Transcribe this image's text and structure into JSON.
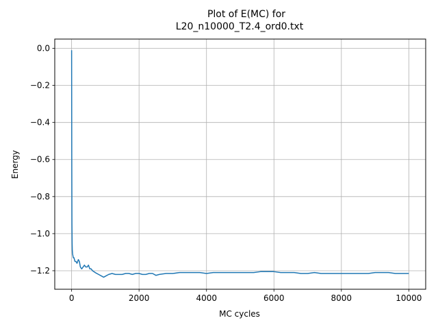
{
  "chart_data": {
    "type": "line",
    "title_line1": "Plot of E(MC) for",
    "title_line2": "L20_n10000_T2.4_ord0.txt",
    "xlabel": "MC cycles",
    "ylabel": "Energy",
    "xlim": [
      -500,
      10500
    ],
    "ylim": [
      -1.3,
      0.05
    ],
    "xticks": [
      0,
      2000,
      4000,
      6000,
      8000,
      10000
    ],
    "xtick_labels": [
      "0",
      "2000",
      "4000",
      "6000",
      "8000",
      "10000"
    ],
    "yticks": [
      0.0,
      -0.2,
      -0.4,
      -0.6,
      -0.8,
      -1.0,
      -1.2
    ],
    "ytick_labels": [
      "0.0",
      "−0.2",
      "−0.4",
      "−0.6",
      "−0.8",
      "−1.0",
      "−1.2"
    ],
    "grid": true,
    "line_color": "#1f77b4",
    "series": [
      {
        "x": [
          0,
          5,
          10,
          15,
          20,
          30,
          40,
          50,
          70,
          100,
          130,
          160,
          200,
          230,
          260,
          300,
          340,
          380,
          420,
          460,
          500,
          540,
          580,
          620,
          700,
          800,
          900,
          950,
          1000,
          1100,
          1200,
          1300,
          1400,
          1500,
          1600,
          1700,
          1800,
          1900,
          2000,
          2100,
          2200,
          2300,
          2400,
          2500,
          2600,
          2800,
          3000,
          3200,
          3400,
          3600,
          3800,
          4000,
          4200,
          4400,
          4600,
          4800,
          5000,
          5200,
          5400,
          5600,
          5800,
          6000,
          6200,
          6400,
          6600,
          6800,
          7000,
          7200,
          7400,
          7600,
          7800,
          8000,
          8200,
          8400,
          8600,
          8800,
          9000,
          9200,
          9400,
          9600,
          9800,
          10000
        ],
        "y": [
          -0.01,
          -0.6,
          -0.95,
          -1.05,
          -1.09,
          -1.11,
          -1.12,
          -1.13,
          -1.13,
          -1.15,
          -1.15,
          -1.16,
          -1.14,
          -1.15,
          -1.18,
          -1.19,
          -1.18,
          -1.17,
          -1.18,
          -1.18,
          -1.17,
          -1.19,
          -1.19,
          -1.2,
          -1.21,
          -1.22,
          -1.23,
          -1.235,
          -1.23,
          -1.22,
          -1.215,
          -1.22,
          -1.22,
          -1.22,
          -1.215,
          -1.215,
          -1.22,
          -1.215,
          -1.215,
          -1.22,
          -1.22,
          -1.215,
          -1.215,
          -1.225,
          -1.22,
          -1.215,
          -1.215,
          -1.21,
          -1.21,
          -1.21,
          -1.21,
          -1.215,
          -1.21,
          -1.21,
          -1.21,
          -1.21,
          -1.21,
          -1.21,
          -1.21,
          -1.205,
          -1.205,
          -1.205,
          -1.21,
          -1.21,
          -1.21,
          -1.215,
          -1.215,
          -1.21,
          -1.215,
          -1.215,
          -1.215,
          -1.215,
          -1.215,
          -1.215,
          -1.215,
          -1.215,
          -1.21,
          -1.21,
          -1.21,
          -1.215,
          -1.215,
          -1.215
        ]
      }
    ]
  }
}
